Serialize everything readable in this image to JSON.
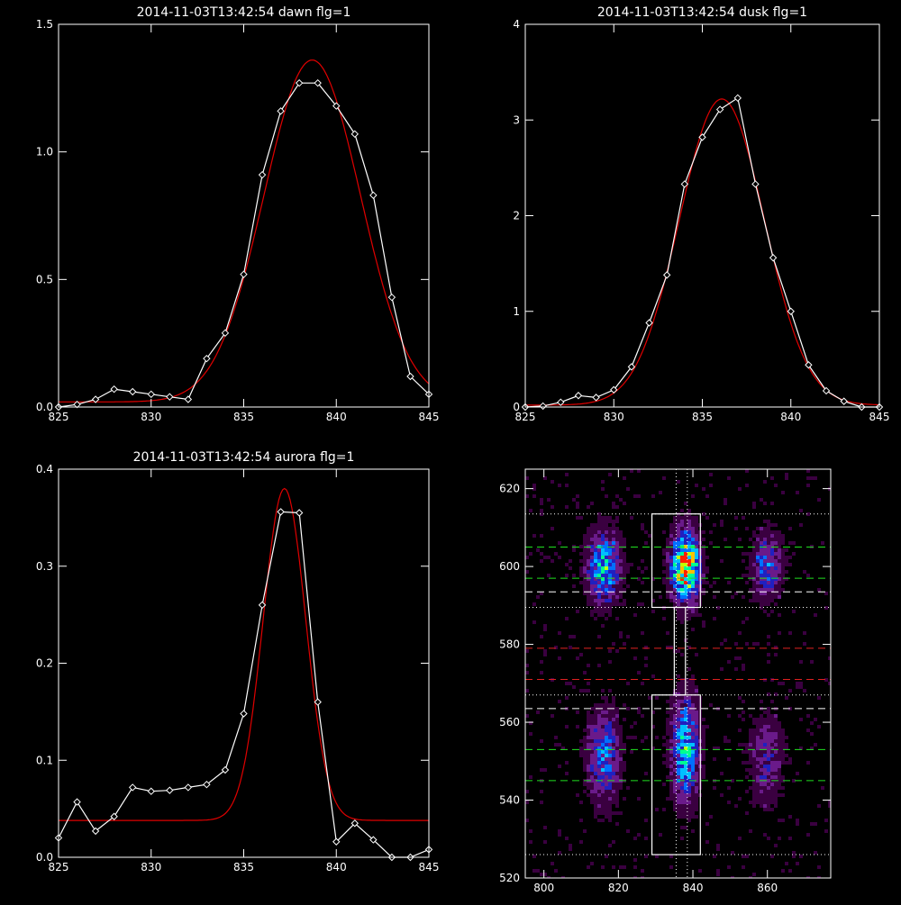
{
  "chart_data": [
    {
      "type": "line",
      "title": "2014-11-03T13:42:54 dawn flg=1",
      "xlim": [
        825,
        845
      ],
      "ylim": [
        0,
        1.5
      ],
      "xticks": [
        825,
        830,
        835,
        840,
        845
      ],
      "xtick_labels": [
        "825",
        "830",
        "835",
        "840",
        "845"
      ],
      "yticks": [
        0,
        0.5,
        1.0,
        1.5
      ],
      "ytick_labels": [
        "0.0",
        "0.5",
        "1.0",
        "1.5"
      ],
      "grid": false,
      "series": [
        {
          "kind": "data",
          "color": "#ffffff",
          "marker": "diamond",
          "x": [
            825,
            826,
            827,
            828,
            829,
            830,
            831,
            832,
            833,
            834,
            835,
            836,
            837,
            838,
            839,
            840,
            841,
            842,
            843,
            844,
            845
          ],
          "y": [
            0.0,
            0.01,
            0.03,
            0.07,
            0.06,
            0.05,
            0.04,
            0.03,
            0.19,
            0.29,
            0.52,
            0.91,
            1.16,
            1.27,
            1.27,
            1.18,
            1.07,
            0.83,
            0.43,
            0.12,
            0.05
          ]
        },
        {
          "kind": "fit",
          "color": "#e00000",
          "model": "gaussian",
          "amplitude": 1.34,
          "center": 838.7,
          "sigma": 2.6,
          "offset": 0.02
        }
      ]
    },
    {
      "type": "line",
      "title": "2014-11-03T13:42:54 dusk flg=1",
      "xlim": [
        825,
        845
      ],
      "ylim": [
        0,
        4
      ],
      "xticks": [
        825,
        830,
        835,
        840,
        845
      ],
      "xtick_labels": [
        "825",
        "830",
        "835",
        "840",
        "845"
      ],
      "yticks": [
        0,
        1,
        2,
        3,
        4
      ],
      "ytick_labels": [
        "0",
        "1",
        "2",
        "3",
        "4"
      ],
      "grid": false,
      "series": [
        {
          "kind": "data",
          "color": "#ffffff",
          "marker": "diamond",
          "x": [
            825,
            826,
            827,
            828,
            829,
            830,
            831,
            832,
            833,
            834,
            835,
            836,
            837,
            838,
            839,
            840,
            841,
            842,
            843,
            844,
            845
          ],
          "y": [
            0.0,
            0.01,
            0.05,
            0.12,
            0.1,
            0.18,
            0.42,
            0.88,
            1.38,
            2.33,
            2.82,
            3.11,
            3.23,
            2.33,
            1.56,
            1.0,
            0.44,
            0.17,
            0.06,
            0.0,
            0.0
          ]
        },
        {
          "kind": "fit",
          "color": "#e00000",
          "model": "gaussian",
          "amplitude": 3.2,
          "center": 836.1,
          "sigma": 2.4,
          "offset": 0.02
        }
      ]
    },
    {
      "type": "line",
      "title": "2014-11-03T13:42:54 aurora flg=1",
      "xlim": [
        825,
        845
      ],
      "ylim": [
        0,
        0.4
      ],
      "xticks": [
        825,
        830,
        835,
        840,
        845
      ],
      "xtick_labels": [
        "825",
        "830",
        "835",
        "840",
        "845"
      ],
      "yticks": [
        0,
        0.1,
        0.2,
        0.3,
        0.4
      ],
      "ytick_labels": [
        "0.0",
        "0.1",
        "0.2",
        "0.3",
        "0.4"
      ],
      "grid": false,
      "series": [
        {
          "kind": "data",
          "color": "#ffffff",
          "marker": "diamond",
          "x": [
            825,
            826,
            827,
            828,
            829,
            830,
            831,
            832,
            833,
            834,
            835,
            836,
            837,
            838,
            839,
            840,
            841,
            842,
            843,
            844,
            845
          ],
          "y": [
            0.02,
            0.057,
            0.027,
            0.042,
            0.072,
            0.068,
            0.069,
            0.072,
            0.075,
            0.09,
            0.148,
            0.26,
            0.356,
            0.355,
            0.16,
            0.016,
            0.035,
            0.018,
            0.0,
            0.0,
            0.008
          ]
        },
        {
          "kind": "fit",
          "color": "#e00000",
          "model": "gaussian",
          "amplitude": 0.342,
          "center": 837.2,
          "sigma": 1.15,
          "offset": 0.038
        }
      ]
    },
    {
      "type": "heatmap",
      "title": "",
      "xlim": [
        795,
        877
      ],
      "ylim": [
        520,
        625
      ],
      "xticks": [
        800,
        820,
        840,
        860
      ],
      "xtick_labels": [
        "800",
        "820",
        "840",
        "860"
      ],
      "yticks": [
        520,
        540,
        560,
        580,
        600,
        620
      ],
      "ytick_labels": [
        "520",
        "540",
        "560",
        "580",
        "600",
        "620"
      ],
      "grid": false,
      "colormap": [
        "#000000",
        "#3a0040",
        "#6a1a8a",
        "#2020c0",
        "#0070ff",
        "#00c0ff",
        "#00ff90",
        "#c0ff00",
        "#ffc000",
        "#ff2000"
      ],
      "blobs": [
        {
          "x": 816,
          "y": 600,
          "sx": 3.0,
          "sy": 6,
          "peak": 0.55
        },
        {
          "x": 816,
          "y": 551,
          "sx": 3.0,
          "sy": 8,
          "peak": 0.4
        },
        {
          "x": 838,
          "y": 600,
          "sx": 2.5,
          "sy": 6,
          "peak": 0.95
        },
        {
          "x": 838,
          "y": 553,
          "sx": 2.5,
          "sy": 9,
          "peak": 0.55
        },
        {
          "x": 860,
          "y": 600,
          "sx": 3.0,
          "sy": 6,
          "peak": 0.35
        },
        {
          "x": 860,
          "y": 551,
          "sx": 3.0,
          "sy": 8,
          "peak": 0.25
        }
      ],
      "hlines": [
        {
          "y": 613.5,
          "color": "#ffffff",
          "style": "dotted"
        },
        {
          "y": 605,
          "color": "#20e020",
          "style": "dashed"
        },
        {
          "y": 597,
          "color": "#20e020",
          "style": "dashed"
        },
        {
          "y": 593.5,
          "color": "#ffffff",
          "style": "dashed"
        },
        {
          "y": 589.5,
          "color": "#ffffff",
          "style": "dotted"
        },
        {
          "y": 579,
          "color": "#e02020",
          "style": "dashed"
        },
        {
          "y": 571,
          "color": "#e02020",
          "style": "dashed"
        },
        {
          "y": 567,
          "color": "#ffffff",
          "style": "dotted"
        },
        {
          "y": 563.5,
          "color": "#ffffff",
          "style": "dashed"
        },
        {
          "y": 553,
          "color": "#20e020",
          "style": "dashed"
        },
        {
          "y": 545,
          "color": "#20e020",
          "style": "dashed"
        },
        {
          "y": 526,
          "color": "#ffffff",
          "style": "dotted"
        }
      ],
      "vlines": [
        {
          "x": 835.5,
          "color": "#ffffff",
          "style": "dotted"
        },
        {
          "x": 838.5,
          "color": "#ffffff",
          "style": "dotted"
        }
      ],
      "boxes": [
        {
          "x0": 829,
          "x1": 842,
          "y0": 589.5,
          "y1": 613.5
        },
        {
          "x0": 835,
          "x1": 838,
          "y0": 567,
          "y1": 589.5
        },
        {
          "x0": 829,
          "x1": 842,
          "y0": 526,
          "y1": 567
        }
      ]
    }
  ]
}
